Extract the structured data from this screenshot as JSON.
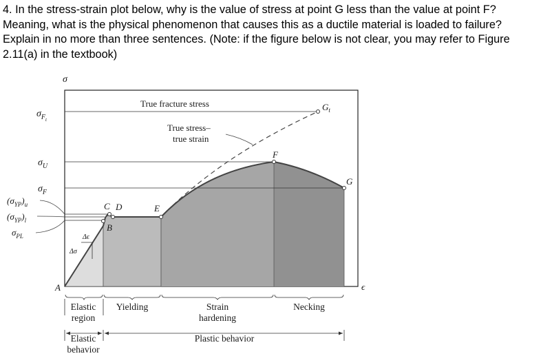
{
  "question": {
    "lines": [
      "4. In the stress-strain plot below, why is the value of stress at point G less than the value at point F?",
      "Meaning, what is the physical phenomenon that causes this as a ductile material is loaded to failure?",
      "Explain in no more than three sentences.  (Note: if the figure below is not clear, you may refer to Figure",
      "2.11(a) in the textbook)"
    ]
  },
  "figure": {
    "axis": {
      "y_symbol": "σ",
      "x_symbol": "ϵ",
      "origin": "A"
    },
    "y_levels": {
      "sigma_Ft": {
        "base": "σ",
        "sub": "F",
        "subsub": "t"
      },
      "sigma_U": {
        "base": "σ",
        "sub": "U"
      },
      "sigma_F": {
        "base": "σ",
        "sub": "F"
      },
      "yp_upper": {
        "base": "(σ",
        "sub": "YP",
        "close": ")",
        "tail": "u"
      },
      "yp_lower": {
        "base": "(σ",
        "sub": "YP",
        "close": ")",
        "tail": "l"
      },
      "sigma_PL": {
        "base": "σ",
        "sub": "PL"
      }
    },
    "points": {
      "B": "B",
      "C": "C",
      "D": "D",
      "E": "E",
      "F": "F",
      "G": "G",
      "Gt": {
        "base": "G",
        "sub": "t"
      }
    },
    "annotations": {
      "true_fracture": "True fracture stress",
      "true_curve_1": "True stress–",
      "true_curve_2": "true strain",
      "delta_eps": "Δϵ",
      "delta_sigma": "Δσ"
    },
    "regions": {
      "elastic_1": "Elastic",
      "elastic_2": "region",
      "yielding": "Yielding",
      "strain_1": "Strain",
      "strain_2": "hardening",
      "necking": "Necking",
      "elastic_behavior_1": "Elastic",
      "elastic_behavior_2": "behavior",
      "plastic_behavior": "Plastic behavior"
    },
    "colors": {
      "elastic_fill": "#dddddd",
      "yielding_fill": "#bbbbbb",
      "hardening_fill": "#a6a6a6",
      "necking_fill": "#919191",
      "curve": "#444444"
    }
  }
}
